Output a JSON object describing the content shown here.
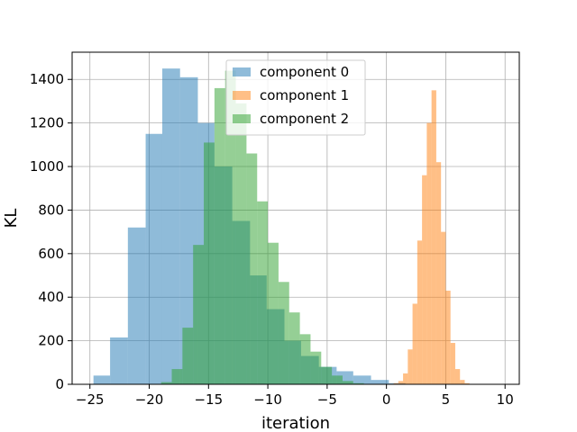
{
  "chart_data": {
    "type": "bar",
    "histogram": true,
    "xlabel": "iteration",
    "ylabel": "KL",
    "xlim": [
      -26.5,
      11.2
    ],
    "ylim": [
      0,
      1525
    ],
    "xticks": [
      -25,
      -20,
      -15,
      -10,
      -5,
      0,
      5,
      10
    ],
    "yticks": [
      0,
      200,
      400,
      600,
      800,
      1000,
      1200,
      1400
    ],
    "grid": true,
    "legend_position": "top-center",
    "series": [
      {
        "name": "component 0",
        "color": "#1f77b4",
        "alpha": 0.5,
        "bin_edges": [
          -24.7,
          -23.3,
          -21.8,
          -20.3,
          -18.9,
          -17.4,
          -15.9,
          -14.5,
          -13.0,
          -11.5,
          -10.1,
          -8.6,
          -7.2,
          -5.7,
          -4.2,
          -2.8,
          -1.3,
          0.2,
          1.6
        ],
        "counts": [
          40,
          215,
          720,
          1150,
          1450,
          1410,
          1200,
          1000,
          750,
          500,
          345,
          200,
          130,
          80,
          60,
          40,
          20,
          5
        ]
      },
      {
        "name": "component 1",
        "color": "#ff7f0e",
        "alpha": 0.5,
        "bin_edges": [
          0.6,
          1.0,
          1.4,
          1.8,
          2.2,
          2.6,
          3.0,
          3.4,
          3.8,
          4.2,
          4.6,
          5.0,
          5.4,
          5.8,
          6.2,
          6.6,
          7.0
        ],
        "counts": [
          5,
          15,
          50,
          160,
          370,
          660,
          960,
          1200,
          1350,
          1020,
          700,
          430,
          190,
          70,
          20,
          5
        ]
      },
      {
        "name": "component 2",
        "color": "#2ca02c",
        "alpha": 0.5,
        "bin_edges": [
          -19.0,
          -18.1,
          -17.2,
          -16.3,
          -15.4,
          -14.5,
          -13.6,
          -12.7,
          -11.8,
          -10.9,
          -10.0,
          -9.1,
          -8.2,
          -7.3,
          -6.4,
          -5.5,
          -4.6,
          -3.7,
          -2.8,
          -1.9,
          -1.0
        ],
        "counts": [
          10,
          70,
          260,
          640,
          1110,
          1360,
          1440,
          1290,
          1060,
          840,
          650,
          470,
          330,
          230,
          150,
          80,
          40,
          15,
          5,
          2
        ]
      }
    ]
  }
}
